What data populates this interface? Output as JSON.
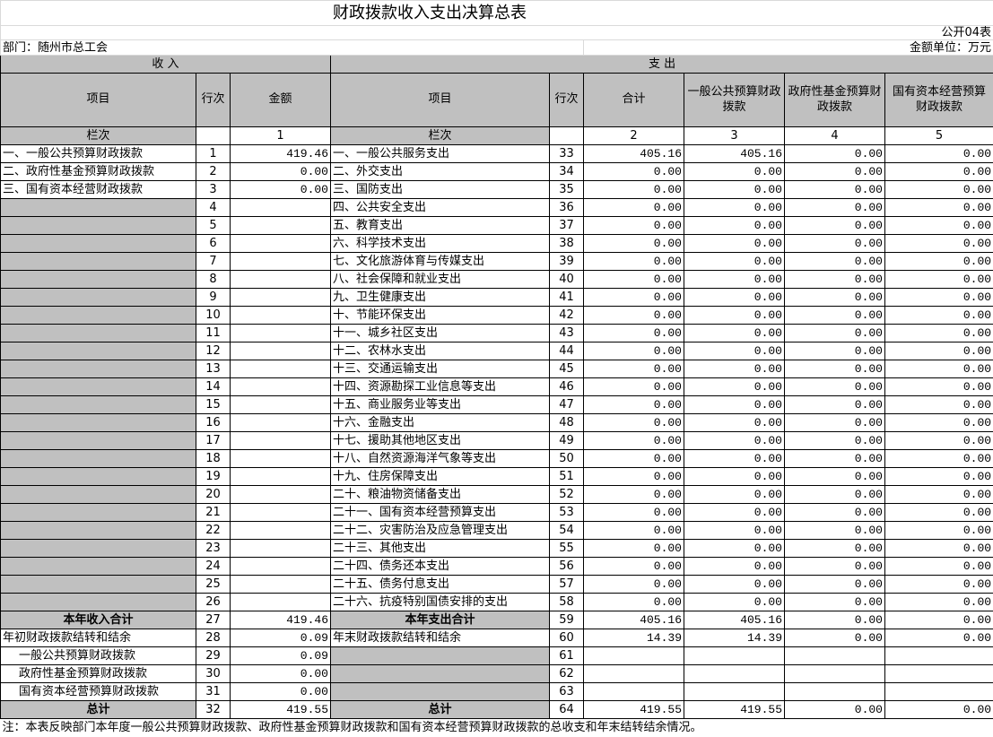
{
  "header": {
    "title": "财政拨款收入支出决算总表",
    "form_no": "公开04表",
    "department": "部门：随州市总工会",
    "unit": "金额单位：万元"
  },
  "sections": {
    "income": "收    入",
    "expense": "支    出"
  },
  "columns": {
    "income": [
      "项目",
      "行次",
      "金额"
    ],
    "expense": [
      "项目",
      "行次",
      "合计",
      "一般公共预算财政拨款",
      "政府性基金预算财政拨款",
      "国有资本经营预算财政拨款"
    ]
  },
  "column_numbers": {
    "income_label": "栏次",
    "income_amount": "1",
    "expense_label": "栏次",
    "total": "2",
    "general": "3",
    "fund": "4",
    "state": "5"
  },
  "rows": [
    {
      "income_item": "一、一般公共预算财政拨款",
      "income_no": "1",
      "income_amount": "419.46",
      "expense_item": "一、一般公共服务支出",
      "expense_no": "33",
      "total": "405.16",
      "general": "405.16",
      "fund": "0.00",
      "state": "0.00"
    },
    {
      "income_item": "二、政府性基金预算财政拨款",
      "income_no": "2",
      "income_amount": "0.00",
      "expense_item": "二、外交支出",
      "expense_no": "34",
      "total": "0.00",
      "general": "0.00",
      "fund": "0.00",
      "state": "0.00"
    },
    {
      "income_item": "三、国有资本经营财政拨款",
      "income_no": "3",
      "income_amount": "0.00",
      "expense_item": "三、国防支出",
      "expense_no": "35",
      "total": "0.00",
      "general": "0.00",
      "fund": "0.00",
      "state": "0.00"
    },
    {
      "income_no": "4",
      "expense_item": "四、公共安全支出",
      "expense_no": "36",
      "total": "0.00",
      "general": "0.00",
      "fund": "0.00",
      "state": "0.00"
    },
    {
      "income_no": "5",
      "expense_item": "五、教育支出",
      "expense_no": "37",
      "total": "0.00",
      "general": "0.00",
      "fund": "0.00",
      "state": "0.00"
    },
    {
      "income_no": "6",
      "expense_item": "六、科学技术支出",
      "expense_no": "38",
      "total": "0.00",
      "general": "0.00",
      "fund": "0.00",
      "state": "0.00"
    },
    {
      "income_no": "7",
      "expense_item": "七、文化旅游体育与传媒支出",
      "expense_no": "39",
      "total": "0.00",
      "general": "0.00",
      "fund": "0.00",
      "state": "0.00"
    },
    {
      "income_no": "8",
      "expense_item": "八、社会保障和就业支出",
      "expense_no": "40",
      "total": "0.00",
      "general": "0.00",
      "fund": "0.00",
      "state": "0.00"
    },
    {
      "income_no": "9",
      "expense_item": "九、卫生健康支出",
      "expense_no": "41",
      "total": "0.00",
      "general": "0.00",
      "fund": "0.00",
      "state": "0.00"
    },
    {
      "income_no": "10",
      "expense_item": "十、节能环保支出",
      "expense_no": "42",
      "total": "0.00",
      "general": "0.00",
      "fund": "0.00",
      "state": "0.00"
    },
    {
      "income_no": "11",
      "expense_item": "十一、城乡社区支出",
      "expense_no": "43",
      "total": "0.00",
      "general": "0.00",
      "fund": "0.00",
      "state": "0.00"
    },
    {
      "income_no": "12",
      "expense_item": "十二、农林水支出",
      "expense_no": "44",
      "total": "0.00",
      "general": "0.00",
      "fund": "0.00",
      "state": "0.00"
    },
    {
      "income_no": "13",
      "expense_item": "十三、交通运输支出",
      "expense_no": "45",
      "total": "0.00",
      "general": "0.00",
      "fund": "0.00",
      "state": "0.00"
    },
    {
      "income_no": "14",
      "expense_item": "十四、资源勘探工业信息等支出",
      "expense_no": "46",
      "total": "0.00",
      "general": "0.00",
      "fund": "0.00",
      "state": "0.00"
    },
    {
      "income_no": "15",
      "expense_item": "十五、商业服务业等支出",
      "expense_no": "47",
      "total": "0.00",
      "general": "0.00",
      "fund": "0.00",
      "state": "0.00"
    },
    {
      "income_no": "16",
      "expense_item": "十六、金融支出",
      "expense_no": "48",
      "total": "0.00",
      "general": "0.00",
      "fund": "0.00",
      "state": "0.00"
    },
    {
      "income_no": "17",
      "expense_item": "十七、援助其他地区支出",
      "expense_no": "49",
      "total": "0.00",
      "general": "0.00",
      "fund": "0.00",
      "state": "0.00"
    },
    {
      "income_no": "18",
      "expense_item": "十八、自然资源海洋气象等支出",
      "expense_no": "50",
      "total": "0.00",
      "general": "0.00",
      "fund": "0.00",
      "state": "0.00"
    },
    {
      "income_no": "19",
      "expense_item": "十九、住房保障支出",
      "expense_no": "51",
      "total": "0.00",
      "general": "0.00",
      "fund": "0.00",
      "state": "0.00"
    },
    {
      "income_no": "20",
      "expense_item": "二十、粮油物资储备支出",
      "expense_no": "52",
      "total": "0.00",
      "general": "0.00",
      "fund": "0.00",
      "state": "0.00"
    },
    {
      "income_no": "21",
      "expense_item": "二十一、国有资本经营预算支出",
      "expense_no": "53",
      "total": "0.00",
      "general": "0.00",
      "fund": "0.00",
      "state": "0.00"
    },
    {
      "income_no": "22",
      "expense_item": "二十二、灾害防治及应急管理支出",
      "expense_no": "54",
      "total": "0.00",
      "general": "0.00",
      "fund": "0.00",
      "state": "0.00"
    },
    {
      "income_no": "23",
      "expense_item": "二十三、其他支出",
      "expense_no": "55",
      "total": "0.00",
      "general": "0.00",
      "fund": "0.00",
      "state": "0.00"
    },
    {
      "income_no": "24",
      "expense_item": "二十四、债务还本支出",
      "expense_no": "56",
      "total": "0.00",
      "general": "0.00",
      "fund": "0.00",
      "state": "0.00"
    },
    {
      "income_no": "25",
      "expense_item": "二十五、债务付息支出",
      "expense_no": "57",
      "total": "0.00",
      "general": "0.00",
      "fund": "0.00",
      "state": "0.00"
    },
    {
      "income_no": "26",
      "expense_item": "二十六、抗疫特别国债安排的支出",
      "expense_no": "58",
      "total": "0.00",
      "general": "0.00",
      "fund": "0.00",
      "state": "0.00"
    },
    {
      "emphasis": true,
      "income_item": "本年收入合计",
      "income_no": "27",
      "income_amount": "419.46",
      "expense_item": "本年支出合计",
      "expense_no": "59",
      "total": "405.16",
      "general": "405.16",
      "fund": "0.00",
      "state": "0.00"
    },
    {
      "income_item": "年初财政拨款结转和结余",
      "income_no": "28",
      "income_amount": "0.09",
      "expense_item": "年末财政拨款结转和结余",
      "expense_no": "60",
      "total": "14.39",
      "general": "14.39",
      "fund": "0.00",
      "state": "0.00"
    },
    {
      "indent": true,
      "income_item": "一般公共预算财政拨款",
      "income_no": "29",
      "income_amount": "0.09",
      "expense_no": "61"
    },
    {
      "indent": true,
      "income_item": "政府性基金预算财政拨款",
      "income_no": "30",
      "income_amount": "0.00",
      "expense_no": "62"
    },
    {
      "indent": true,
      "income_item": "国有资本经营预算财政拨款",
      "income_no": "31",
      "income_amount": "0.00",
      "expense_no": "63"
    },
    {
      "emphasis": true,
      "income_item": "总计",
      "income_no": "32",
      "income_amount": "419.55",
      "expense_item": "总计",
      "expense_no": "64",
      "total": "419.55",
      "general": "419.55",
      "fund": "0.00",
      "state": "0.00"
    }
  ],
  "note": "注：本表反映部门本年度一般公共预算财政拨款、政府性基金预算财政拨款和国有资本经营预算财政拨款的总收支和年末结转结余情况。"
}
